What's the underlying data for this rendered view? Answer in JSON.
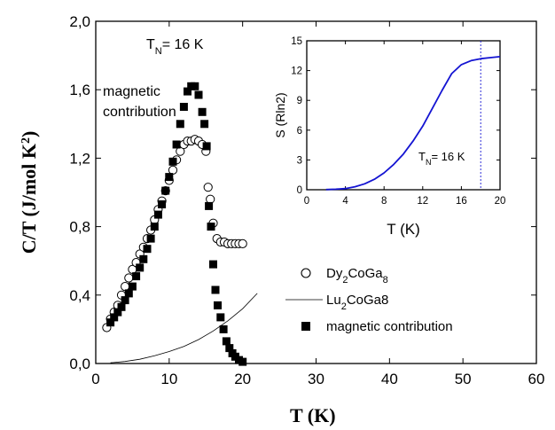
{
  "chart_data": [
    {
      "type": "scatter",
      "xlabel": "T (K)",
      "ylabel": "C/T (J/mol K²)",
      "xlim": [
        0,
        60
      ],
      "ylim": [
        0,
        2.0
      ],
      "xticks": [
        "0",
        "10",
        "20",
        "30",
        "40",
        "50",
        "60"
      ],
      "yticks": [
        "0,0",
        "0,4",
        "0,8",
        "1,2",
        "1,6",
        "2,0"
      ],
      "annotations": {
        "tn": "T",
        "tn_sub": "N",
        "tn_rest": "= 16 K",
        "magnetic_line1": "magnetic",
        "magnetic_line2": "contribution"
      },
      "legend": [
        {
          "marker": "open-circle",
          "label": "Dy",
          "sub": "2",
          "label2": "CoGa",
          "sub2": "8"
        },
        {
          "marker": "line",
          "label": "Lu",
          "sub": "2",
          "label2": "CoGa8",
          "sub2": ""
        },
        {
          "marker": "filled-square",
          "label": "magnetic contribution",
          "sub": "",
          "label2": "",
          "sub2": ""
        }
      ],
      "series": [
        {
          "name": "Dy2CoGa8",
          "marker": "open-circle",
          "x": [
            1.5,
            2.0,
            2.5,
            3.0,
            3.5,
            4.0,
            4.5,
            5.0,
            5.5,
            6.0,
            6.5,
            7.0,
            7.5,
            8.0,
            8.5,
            9.0,
            9.5,
            10.0,
            10.5,
            11.0,
            11.5,
            12.0,
            12.5,
            13.0,
            13.5,
            14.0,
            14.5,
            15.0,
            15.3,
            15.6,
            16.0,
            16.5,
            17.0,
            17.5,
            18.0,
            18.5,
            19.0,
            19.5,
            20.0
          ],
          "y": [
            0.21,
            0.26,
            0.3,
            0.34,
            0.4,
            0.45,
            0.5,
            0.55,
            0.59,
            0.64,
            0.68,
            0.73,
            0.78,
            0.84,
            0.9,
            0.95,
            1.01,
            1.07,
            1.13,
            1.19,
            1.24,
            1.28,
            1.3,
            1.3,
            1.31,
            1.3,
            1.28,
            1.24,
            1.03,
            0.96,
            0.82,
            0.73,
            0.71,
            0.71,
            0.7,
            0.7,
            0.7,
            0.7,
            0.7
          ]
        },
        {
          "name": "Lu2CoGa8",
          "marker": "line",
          "x": [
            2,
            4,
            6,
            8,
            10,
            12,
            14,
            16,
            18,
            20,
            22
          ],
          "y": [
            0.004,
            0.012,
            0.025,
            0.045,
            0.07,
            0.1,
            0.14,
            0.19,
            0.25,
            0.32,
            0.41
          ]
        },
        {
          "name": "magnetic contribution",
          "marker": "filled-square",
          "x": [
            2.0,
            2.5,
            3.0,
            3.5,
            4.0,
            4.5,
            5.0,
            5.5,
            6.0,
            6.5,
            7.0,
            7.5,
            8.0,
            8.5,
            9.0,
            9.5,
            10.0,
            10.5,
            11.0,
            11.5,
            12.0,
            12.5,
            13.0,
            13.5,
            14.0,
            14.5,
            14.8,
            15.1,
            15.4,
            15.7,
            16.0,
            16.3,
            16.6,
            17.0,
            17.4,
            17.8,
            18.2,
            18.6,
            19.0,
            19.5,
            20.0
          ],
          "y": [
            0.24,
            0.27,
            0.3,
            0.33,
            0.37,
            0.41,
            0.45,
            0.51,
            0.56,
            0.61,
            0.67,
            0.73,
            0.8,
            0.87,
            0.93,
            1.01,
            1.09,
            1.18,
            1.28,
            1.4,
            1.5,
            1.59,
            1.62,
            1.62,
            1.57,
            1.47,
            1.4,
            1.27,
            0.92,
            0.8,
            0.58,
            0.43,
            0.34,
            0.27,
            0.2,
            0.13,
            0.09,
            0.06,
            0.04,
            0.02,
            0.01
          ]
        }
      ]
    },
    {
      "type": "line",
      "xlabel": "T (K)",
      "ylabel": "S (Rln2)",
      "xlim": [
        0,
        20
      ],
      "ylim": [
        0,
        15
      ],
      "xticks": [
        "0",
        "4",
        "8",
        "12",
        "16",
        "20"
      ],
      "yticks": [
        "0",
        "3",
        "6",
        "9",
        "12",
        "15"
      ],
      "annotation": {
        "t": "T",
        "sub": "N",
        "rest": "= 16 K"
      },
      "vline_x": 18,
      "series": [
        {
          "name": "S",
          "color": "#1414d2",
          "x": [
            2,
            3,
            4,
            5,
            6,
            7,
            8,
            9,
            10,
            11,
            12,
            13,
            14,
            15,
            16,
            17,
            18,
            19,
            20
          ],
          "y": [
            0.02,
            0.05,
            0.12,
            0.3,
            0.6,
            1.05,
            1.7,
            2.55,
            3.6,
            4.9,
            6.4,
            8.2,
            10.0,
            11.7,
            12.6,
            13.0,
            13.2,
            13.3,
            13.4
          ]
        }
      ]
    }
  ]
}
